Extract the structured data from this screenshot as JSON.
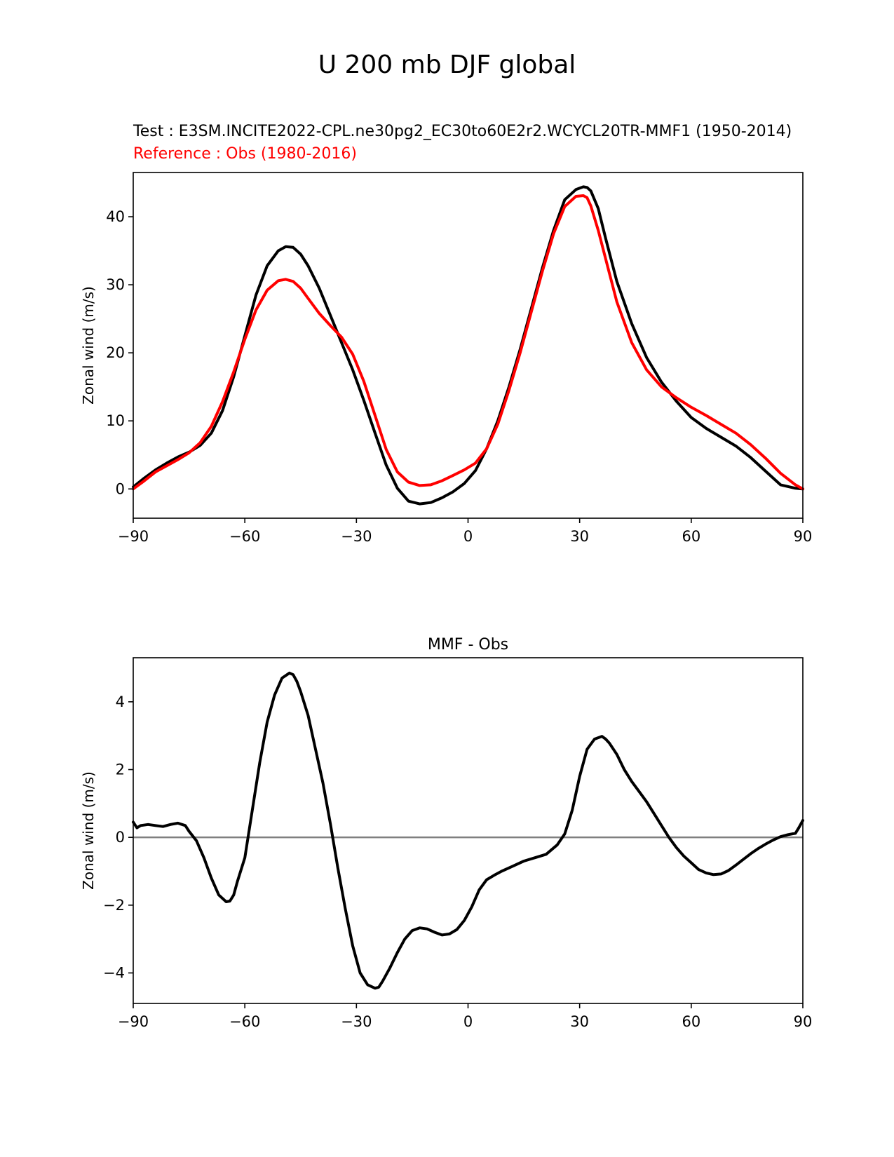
{
  "figure_title": "U 200 mb DJF global",
  "top_panel": {
    "test_label": "Test : E3SM.INCITE2022-CPL.ne30pg2_EC30to60E2r2.WCYCL20TR-MMF1 (1950-2014)",
    "reference_label": "Reference : Obs (1980-2016)"
  },
  "colors": {
    "test": "#000000",
    "reference": "#ff0000",
    "zero_line": "#808080"
  },
  "chart_data": [
    {
      "type": "line",
      "title": "",
      "xlabel": "",
      "ylabel": "Zonal wind (m/s)",
      "xlim": [
        -90,
        90
      ],
      "ylim": [
        -4.3,
        46.5
      ],
      "xticks": [
        -90,
        -60,
        -30,
        0,
        30,
        60,
        90
      ],
      "xtick_labels": [
        "−90",
        "−60",
        "−30",
        "0",
        "30",
        "60",
        "90"
      ],
      "yticks": [
        0,
        10,
        20,
        30,
        40
      ],
      "ytick_labels": [
        "0",
        "10",
        "20",
        "30",
        "40"
      ],
      "series": [
        {
          "name": "Test",
          "color": "#000000",
          "x": [
            -90,
            -87,
            -84,
            -81,
            -78,
            -75,
            -72,
            -69,
            -66,
            -63,
            -60,
            -57,
            -54,
            -51,
            -49,
            -47,
            -45,
            -43,
            -40,
            -37,
            -34,
            -31,
            -28,
            -25,
            -22,
            -19,
            -16,
            -13,
            -10,
            -7,
            -4,
            -1,
            2,
            5,
            8,
            11,
            14,
            17,
            20,
            23,
            26,
            29,
            31,
            32,
            33,
            35,
            37,
            40,
            44,
            48,
            52,
            56,
            60,
            64,
            68,
            72,
            76,
            80,
            84,
            88,
            90
          ],
          "values": [
            0.3,
            1.6,
            2.8,
            3.8,
            4.7,
            5.4,
            6.4,
            8.2,
            11.5,
            16.5,
            22.5,
            28.5,
            32.8,
            35.0,
            35.6,
            35.5,
            34.5,
            32.8,
            29.5,
            25.5,
            21.5,
            17.5,
            13.0,
            8.2,
            3.5,
            0.1,
            -1.8,
            -2.2,
            -2.0,
            -1.3,
            -0.4,
            0.8,
            2.7,
            5.9,
            10.0,
            15.0,
            20.5,
            26.5,
            32.5,
            38.0,
            42.5,
            44.0,
            44.4,
            44.3,
            43.8,
            41.2,
            36.8,
            30.5,
            24.3,
            19.3,
            15.7,
            12.9,
            10.5,
            8.9,
            7.6,
            6.3,
            4.6,
            2.6,
            0.6,
            0.1,
            0.0
          ]
        },
        {
          "name": "Reference",
          "color": "#ff0000",
          "x": [
            -90,
            -87,
            -84,
            -81,
            -78,
            -75,
            -72,
            -69,
            -66,
            -63,
            -60,
            -57,
            -54,
            -51,
            -49,
            -47,
            -45,
            -43,
            -40,
            -37,
            -34,
            -31,
            -28,
            -25,
            -22,
            -19,
            -16,
            -13,
            -10,
            -7,
            -4,
            -1,
            2,
            5,
            8,
            11,
            14,
            17,
            20,
            23,
            26,
            29,
            31,
            32,
            33,
            35,
            37,
            40,
            44,
            48,
            52,
            56,
            60,
            64,
            68,
            72,
            76,
            80,
            84,
            88,
            90
          ],
          "values": [
            0.0,
            1.2,
            2.5,
            3.4,
            4.3,
            5.3,
            6.8,
            9.2,
            12.8,
            17.2,
            22.0,
            26.3,
            29.2,
            30.6,
            30.8,
            30.5,
            29.5,
            28.0,
            25.8,
            24.0,
            22.3,
            19.8,
            15.8,
            10.8,
            5.8,
            2.5,
            1.0,
            0.5,
            0.6,
            1.2,
            2.0,
            2.8,
            3.8,
            5.9,
            9.5,
            14.5,
            20.0,
            26.0,
            32.0,
            37.5,
            41.5,
            43.0,
            43.1,
            42.8,
            41.6,
            38.0,
            33.8,
            27.5,
            21.5,
            17.5,
            15.0,
            13.4,
            12.0,
            10.8,
            9.5,
            8.2,
            6.5,
            4.5,
            2.3,
            0.6,
            0.0
          ]
        }
      ]
    },
    {
      "type": "line",
      "title": "MMF - Obs",
      "xlabel": "",
      "ylabel": "Zonal wind (m/s)",
      "xlim": [
        -90,
        90
      ],
      "ylim": [
        -4.9,
        5.3
      ],
      "xticks": [
        -90,
        -60,
        -30,
        0,
        30,
        60,
        90
      ],
      "xtick_labels": [
        "−90",
        "−60",
        "−30",
        "0",
        "30",
        "60",
        "90"
      ],
      "yticks": [
        -4,
        -2,
        0,
        2,
        4
      ],
      "ytick_labels": [
        "−4",
        "−2",
        "0",
        "2",
        "4"
      ],
      "zero_line": 0,
      "series": [
        {
          "name": "MMF - Obs",
          "color": "#000000",
          "x": [
            -90,
            -89,
            -88,
            -86,
            -84,
            -82,
            -80,
            -78,
            -76,
            -75,
            -73,
            -71,
            -69,
            -67,
            -65,
            -64,
            -63,
            -62,
            -60,
            -58,
            -56,
            -54,
            -52,
            -50,
            -48,
            -47,
            -46,
            -45,
            -43,
            -41,
            -39,
            -37,
            -35,
            -33,
            -31,
            -29,
            -27,
            -25,
            -24,
            -23,
            -21,
            -19,
            -17,
            -15,
            -13,
            -11,
            -9,
            -7,
            -5,
            -3,
            -1,
            1,
            3,
            5,
            7,
            9,
            12,
            15,
            18,
            21,
            24,
            26,
            28,
            30,
            32,
            34,
            36,
            37,
            38,
            40,
            42,
            44,
            46,
            48,
            50,
            52,
            54,
            56,
            58,
            60,
            62,
            64,
            66,
            68,
            70,
            72,
            74,
            76,
            78,
            80,
            82,
            84,
            86,
            88,
            89,
            90
          ],
          "values": [
            0.45,
            0.28,
            0.35,
            0.38,
            0.35,
            0.32,
            0.38,
            0.42,
            0.35,
            0.18,
            -0.1,
            -0.6,
            -1.2,
            -1.7,
            -1.9,
            -1.88,
            -1.7,
            -1.3,
            -0.6,
            0.8,
            2.2,
            3.4,
            4.2,
            4.7,
            4.85,
            4.8,
            4.6,
            4.3,
            3.6,
            2.6,
            1.6,
            0.4,
            -0.9,
            -2.1,
            -3.2,
            -4.0,
            -4.35,
            -4.45,
            -4.42,
            -4.25,
            -3.85,
            -3.4,
            -3.0,
            -2.75,
            -2.67,
            -2.7,
            -2.8,
            -2.88,
            -2.85,
            -2.72,
            -2.45,
            -2.05,
            -1.55,
            -1.25,
            -1.12,
            -1.0,
            -0.85,
            -0.7,
            -0.6,
            -0.5,
            -0.22,
            0.1,
            0.8,
            1.8,
            2.6,
            2.9,
            2.98,
            2.9,
            2.78,
            2.45,
            2.0,
            1.65,
            1.35,
            1.05,
            0.7,
            0.35,
            0.0,
            -0.3,
            -0.55,
            -0.75,
            -0.95,
            -1.05,
            -1.1,
            -1.08,
            -0.98,
            -0.82,
            -0.65,
            -0.48,
            -0.33,
            -0.2,
            -0.08,
            0.02,
            0.08,
            0.12,
            0.3,
            0.5
          ]
        }
      ]
    }
  ]
}
